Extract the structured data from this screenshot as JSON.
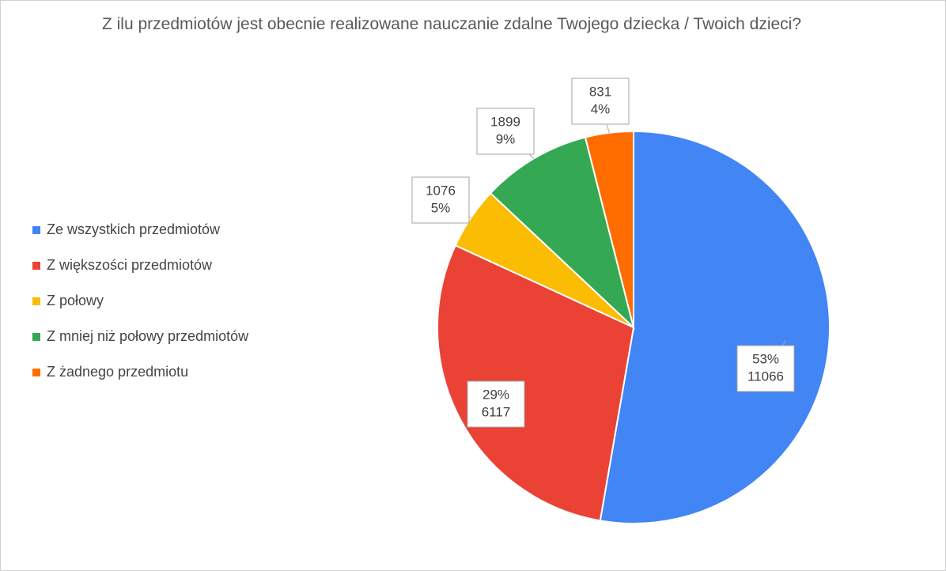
{
  "chart_data": {
    "type": "pie",
    "title": "Z ilu przedmiotów jest obecnie realizowane nauczanie zdalne Twojego dziecka / Twoich dzieci?",
    "categories": [
      "Ze wszystkich przedmiotów",
      "Z większości przedmiotów",
      "Z połowy",
      "Z mniej niż połowy przedmiotów",
      "Z żadnego przedmiotu"
    ],
    "values": [
      11066,
      6117,
      1076,
      1899,
      831
    ],
    "percentages": [
      53,
      29,
      5,
      9,
      4
    ],
    "percentage_labels": [
      "53%",
      "29%",
      "5%",
      "9%",
      "4%"
    ],
    "colors": [
      "#4285f4",
      "#ea4335",
      "#fbbc04",
      "#34a853",
      "#ff6d01"
    ],
    "legend": "left"
  }
}
